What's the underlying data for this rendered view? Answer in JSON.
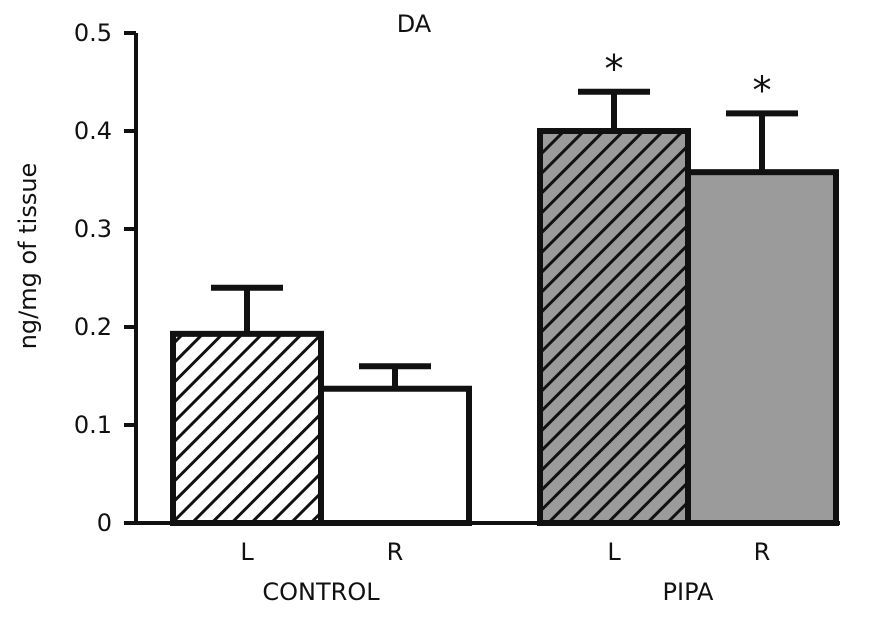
{
  "chart_data": {
    "type": "bar",
    "title": "DA",
    "xlabel": "",
    "ylabel": "ng/mg of tissue",
    "ylim": [
      0,
      0.5
    ],
    "yticks": [
      "0",
      "0.1",
      "0.2",
      "0.3",
      "0.4",
      "0.5"
    ],
    "groups": [
      {
        "label": "CONTROL",
        "bars": [
          {
            "label": "L",
            "value": 0.193,
            "error": 0.047,
            "fill": "#ffffff",
            "hatched": true,
            "significant": false
          },
          {
            "label": "R",
            "value": 0.137,
            "error": 0.023,
            "fill": "#ffffff",
            "hatched": false,
            "significant": false
          }
        ]
      },
      {
        "label": "PIPA",
        "bars": [
          {
            "label": "L",
            "value": 0.4,
            "error": 0.04,
            "fill": "#9b9b9b",
            "hatched": true,
            "significant": true
          },
          {
            "label": "R",
            "value": 0.358,
            "error": 0.06,
            "fill": "#9b9b9b",
            "hatched": false,
            "significant": true
          }
        ]
      }
    ],
    "significance_marker": "*"
  }
}
